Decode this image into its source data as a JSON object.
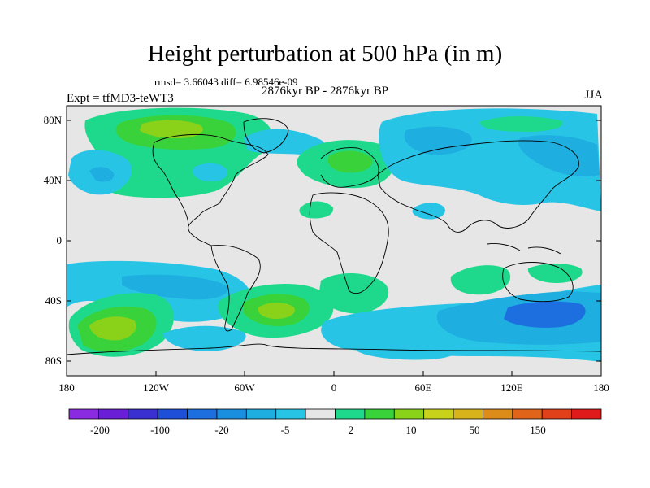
{
  "title": "Height perturbation at 500 hPa (in m)",
  "stats_line": "rmsd= 3.66043 diff= 6.98546e-09",
  "experiment": "Expt = tfMD3-teWT3",
  "period": "2876kyr BP - 2876kyr BP",
  "season": "JJA",
  "lat_ticks": [
    "80N",
    "40N",
    "0",
    "40S",
    "80S"
  ],
  "lon_ticks": [
    "180",
    "120W",
    "60W",
    "0",
    "60E",
    "120E",
    "180"
  ],
  "colorbar": {
    "labels": [
      "-200",
      "-100",
      "-20",
      "-5",
      "2",
      "10",
      "50",
      "150"
    ],
    "colors": [
      "#8a2be2",
      "#6a1fd6",
      "#3a2fd0",
      "#1e4fd8",
      "#1d6fe0",
      "#1a8fdf",
      "#1eaee0",
      "#27c4e6",
      "#e6e6e6",
      "#1ed98c",
      "#3ad23a",
      "#8ad21a",
      "#c8d21a",
      "#d8b41a",
      "#dd8c1a",
      "#e0641a",
      "#e0401a",
      "#e01a1a"
    ]
  },
  "colors": {
    "background": "#e6e6e6",
    "coast": "#000000"
  }
}
